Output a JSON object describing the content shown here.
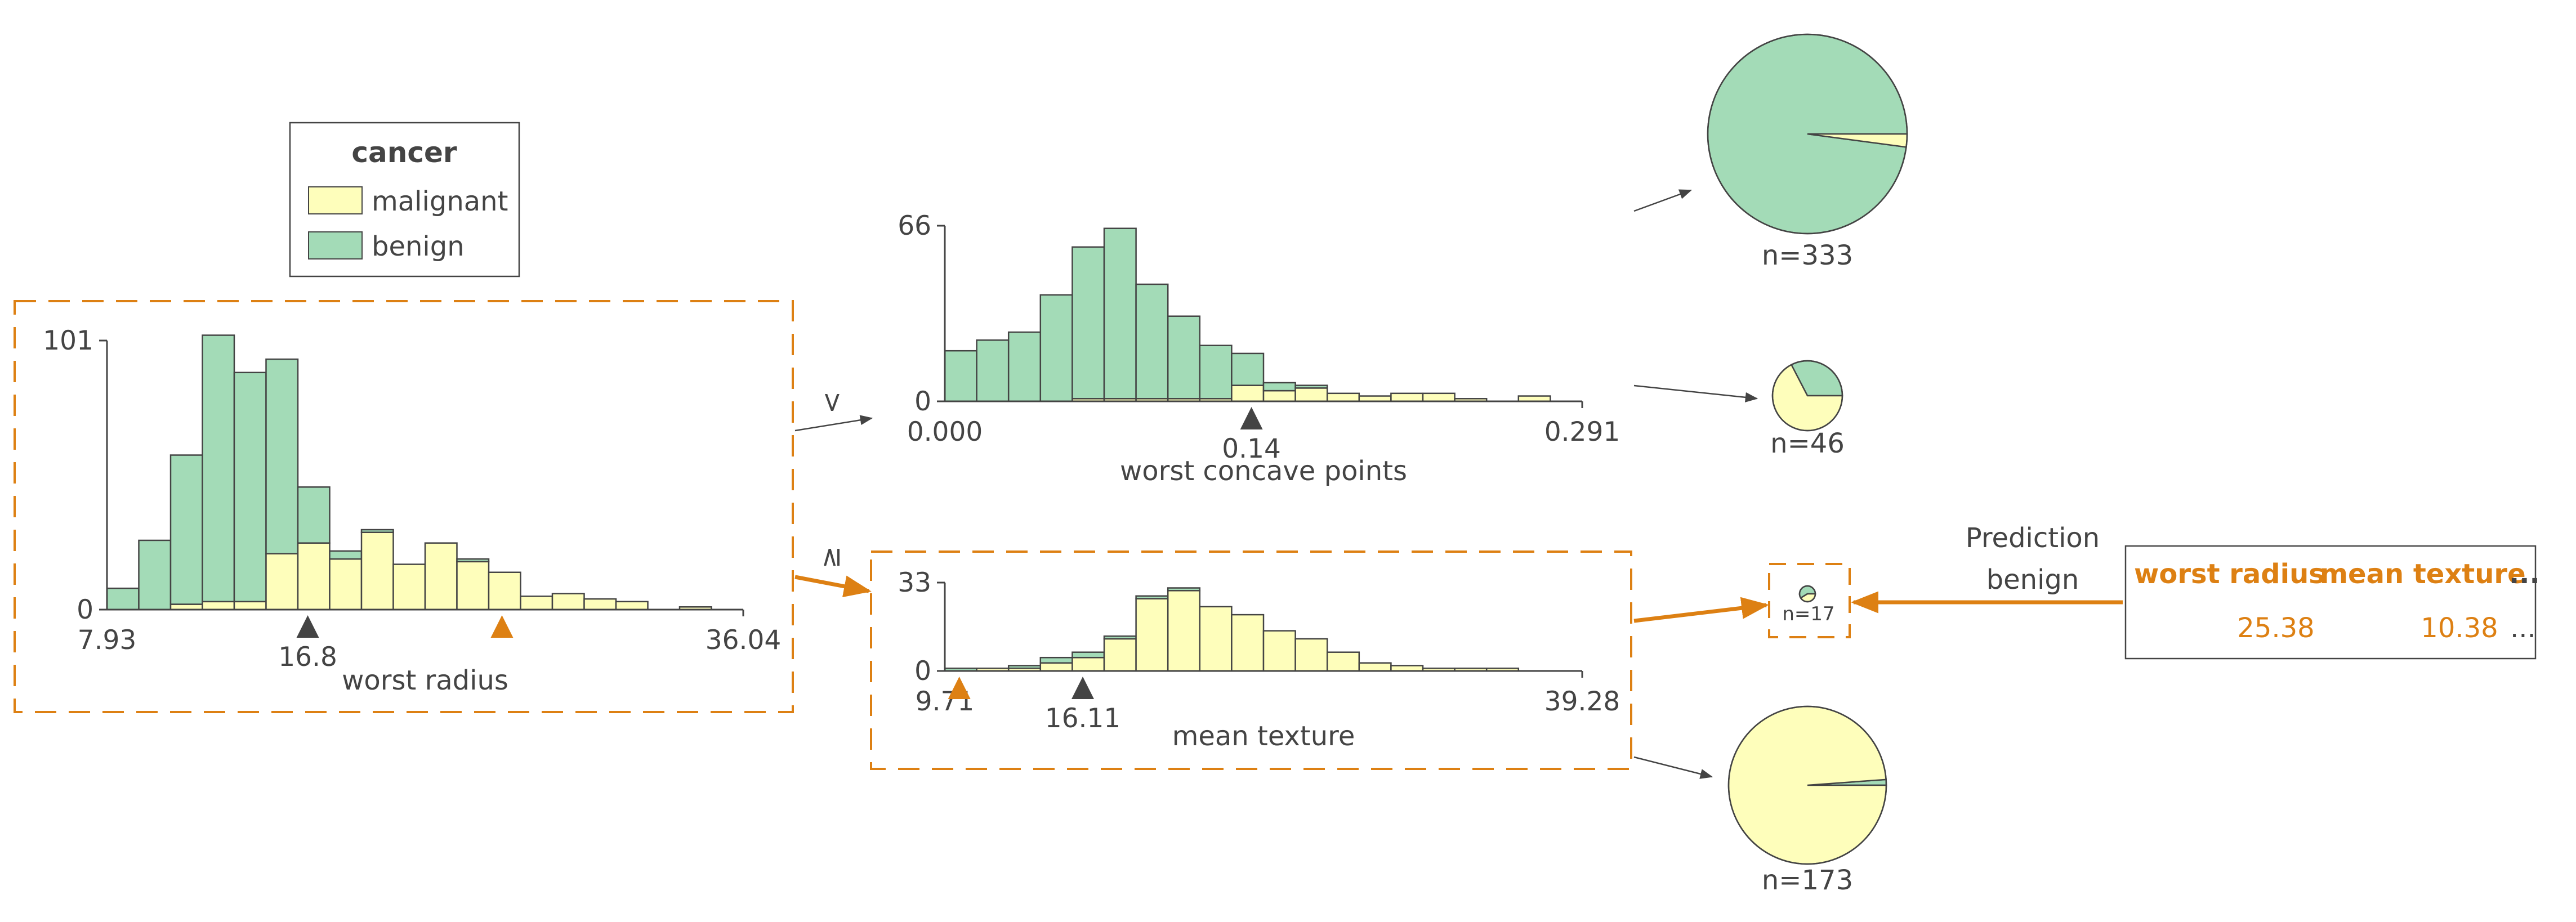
{
  "colors": {
    "benign": "#a3dbb7",
    "malignant": "#fefebb",
    "highlight": "#dd8013",
    "text": "#444444",
    "bar_edge": "#444444",
    "arrow": "#444444"
  },
  "legend": {
    "title": "cancer",
    "items": [
      {
        "label": "malignant",
        "color": "#fefebb"
      },
      {
        "label": "benign",
        "color": "#a3dbb7"
      }
    ]
  },
  "split_symbols": {
    "less": "<",
    "ge": "≥"
  },
  "chart_data": [
    {
      "type": "bar",
      "stacked": true,
      "xlabel": "worst radius",
      "x_min_label": "7.93",
      "x_max_label": "36.04",
      "y_ticks": [
        "0",
        "101"
      ],
      "ylim": [
        0,
        101
      ],
      "xlim": [
        7.93,
        36.04
      ],
      "split_label": "16.8",
      "split_value": 16.8,
      "instance_value": 25.38,
      "series": [
        {
          "name": "benign",
          "values": [
            8,
            26,
            56,
            100,
            86,
            73,
            21,
            3,
            1,
            0,
            0,
            1,
            0,
            0,
            0,
            0,
            0,
            0,
            0,
            0
          ]
        },
        {
          "name": "malignant",
          "values": [
            0,
            0,
            2,
            3,
            3,
            21,
            25,
            19,
            29,
            17,
            25,
            18,
            14,
            5,
            6,
            4,
            3,
            0,
            1,
            0
          ]
        }
      ]
    },
    {
      "type": "bar",
      "stacked": true,
      "xlabel": "worst concave points",
      "x_min_label": "0.000",
      "x_max_label": "0.291",
      "y_ticks": [
        "0",
        "66"
      ],
      "ylim": [
        0,
        66
      ],
      "xlim": [
        0.0,
        0.291
      ],
      "split_label": "0.14",
      "split_value": 0.14,
      "series": [
        {
          "name": "benign",
          "values": [
            19,
            23,
            26,
            40,
            57,
            64,
            43,
            31,
            20,
            12,
            3,
            1,
            0,
            0,
            0,
            0,
            0,
            0,
            0,
            0
          ]
        },
        {
          "name": "malignant",
          "values": [
            0,
            0,
            0,
            0,
            1,
            1,
            1,
            1,
            1,
            6,
            4,
            5,
            3,
            2,
            3,
            3,
            1,
            0,
            2,
            0
          ]
        }
      ]
    },
    {
      "type": "bar",
      "stacked": true,
      "xlabel": "mean texture",
      "x_min_label": "9.71",
      "x_max_label": "39.28",
      "y_ticks": [
        "0",
        "33"
      ],
      "ylim": [
        0,
        33
      ],
      "xlim": [
        9.71,
        39.28
      ],
      "split_label": "16.11",
      "split_value": 16.11,
      "instance_value": 10.38,
      "series": [
        {
          "name": "benign",
          "values": [
            1,
            0,
            1,
            2,
            2,
            1,
            1,
            1,
            0,
            0,
            0,
            0,
            0,
            0,
            0,
            0,
            0,
            0,
            0,
            0
          ]
        },
        {
          "name": "malignant",
          "values": [
            0,
            1,
            1,
            3,
            5,
            12,
            27,
            30,
            24,
            21,
            15,
            12,
            7,
            3,
            2,
            1,
            1,
            1,
            0,
            0
          ]
        }
      ]
    },
    {
      "type": "pie",
      "label": "n=333",
      "values": [
        {
          "name": "benign",
          "value": 326
        },
        {
          "name": "malignant",
          "value": 7
        }
      ]
    },
    {
      "type": "pie",
      "label": "n=46",
      "values": [
        {
          "name": "benign",
          "value": 15
        },
        {
          "name": "malignant",
          "value": 31
        }
      ]
    },
    {
      "type": "pie",
      "label": "n=17",
      "values": [
        {
          "name": "benign",
          "value": 10
        },
        {
          "name": "malignant",
          "value": 7
        }
      ]
    },
    {
      "type": "pie",
      "label": "n=173",
      "values": [
        {
          "name": "benign",
          "value": 2
        },
        {
          "name": "malignant",
          "value": 171
        }
      ]
    }
  ],
  "prediction": {
    "title": "Prediction",
    "value": "benign"
  },
  "instance": {
    "headers": [
      "worst radius",
      "mean texture",
      "..."
    ],
    "values": [
      "25.38",
      "10.38",
      "..."
    ]
  }
}
